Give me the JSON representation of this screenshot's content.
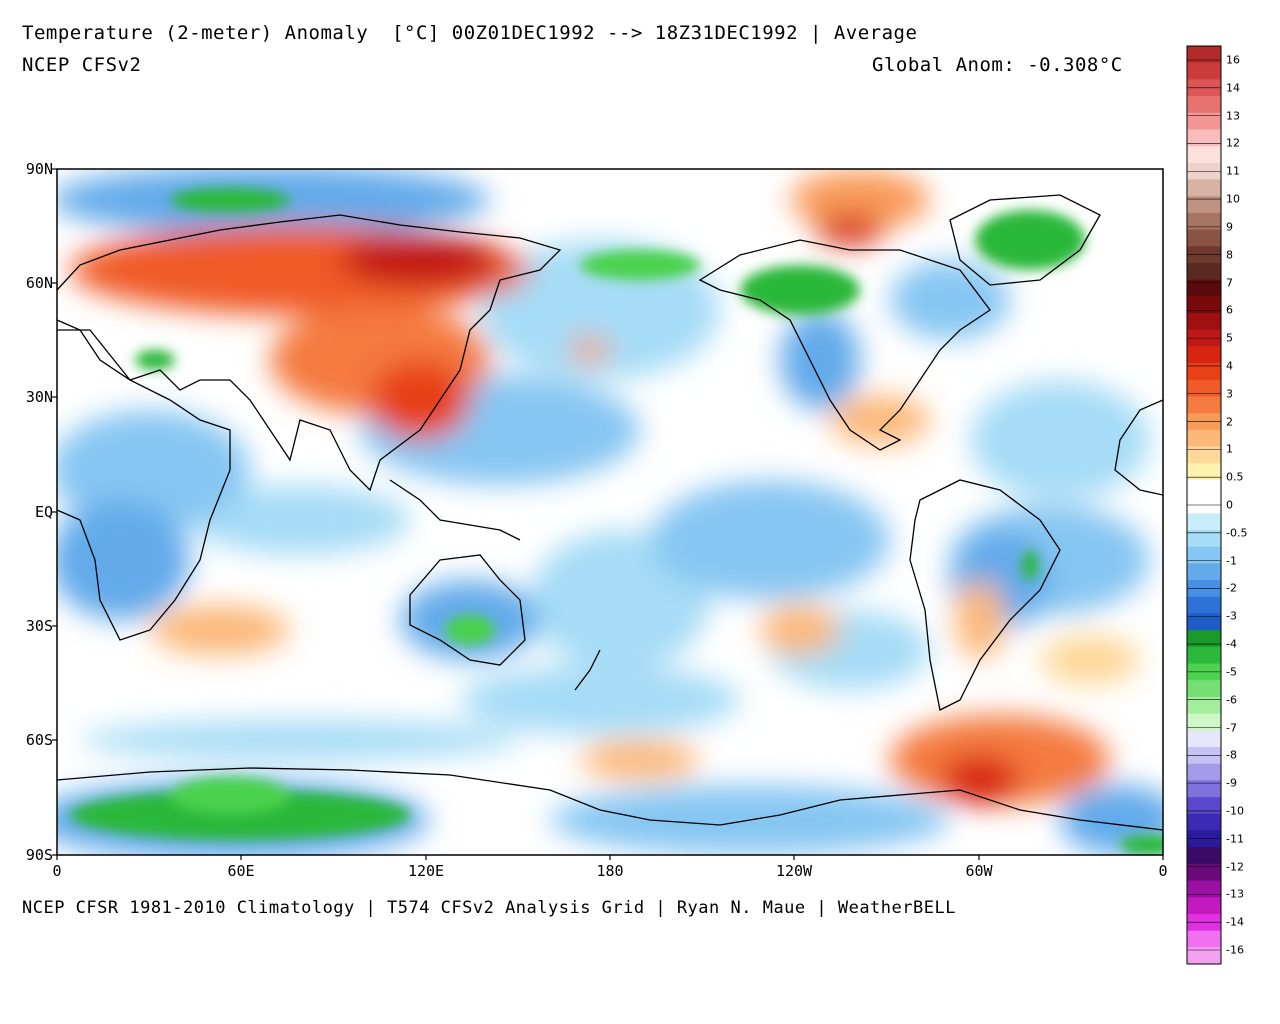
{
  "header": {
    "title": "Temperature (2-meter) Anomaly  [°C] 00Z01DEC1992 --> 18Z31DEC1992 | Average",
    "model": "NCEP CFSv2",
    "global_anom": "Global Anom: -0.308°C"
  },
  "footer": {
    "credits": "NCEP CFSR 1981-2010 Climatology | T574 CFSv2 Analysis Grid | Ryan N. Maue | WeatherBELL"
  },
  "map": {
    "lat_labels": [
      "90N",
      "60N",
      "30N",
      "EQ",
      "30S",
      "60S",
      "90S"
    ],
    "lon_labels": [
      "0",
      "60E",
      "120E",
      "180",
      "120W",
      "60W",
      "0"
    ]
  },
  "legend": {
    "labels": [
      "16",
      "14",
      "13",
      "12",
      "11",
      "10",
      "9",
      "8",
      "7",
      "6",
      "5",
      "4",
      "3",
      "2",
      "1",
      "0.5",
      "0",
      "-0.5",
      "-1",
      "-2",
      "-3",
      "-4",
      "-5",
      "-6",
      "-7",
      "-8",
      "-9",
      "-10",
      "-11",
      "-12",
      "-13",
      "-14",
      "-16"
    ],
    "colors": [
      "#b22a2a",
      "#cc3b3b",
      "#dd5555",
      "#e87272",
      "#f29595",
      "#f8bcbc",
      "#fbe0dc",
      "#ecd2c8",
      "#d8b2a4",
      "#c09282",
      "#a87462",
      "#8a5444",
      "#6e3a2e",
      "#5a2a20",
      "#5a0a0a",
      "#7a0a0a",
      "#a01010",
      "#c01818",
      "#d82510",
      "#e84018",
      "#f05a28",
      "#f47a40",
      "#f89a58",
      "#fbb878",
      "#fdd898",
      "#fff2b0",
      "#ffffff",
      "#ffffff",
      "#c8eefa",
      "#a6dcf6",
      "#86c6f2",
      "#62aaea",
      "#4690e4",
      "#2e72d8",
      "#1e5cc8",
      "#1a9a2a",
      "#2cb83a",
      "#4cd24e",
      "#74e074",
      "#a2ee9c",
      "#cef6c6",
      "#e6e6fc",
      "#c6c2f4",
      "#a49aea",
      "#8070de",
      "#5c48cc",
      "#3a2ab4",
      "#2a1a9c",
      "#3a0a66",
      "#6a0a7a",
      "#9a10a0",
      "#c418c0",
      "#e030e0",
      "#f070f0",
      "#f4a0f0"
    ]
  }
}
